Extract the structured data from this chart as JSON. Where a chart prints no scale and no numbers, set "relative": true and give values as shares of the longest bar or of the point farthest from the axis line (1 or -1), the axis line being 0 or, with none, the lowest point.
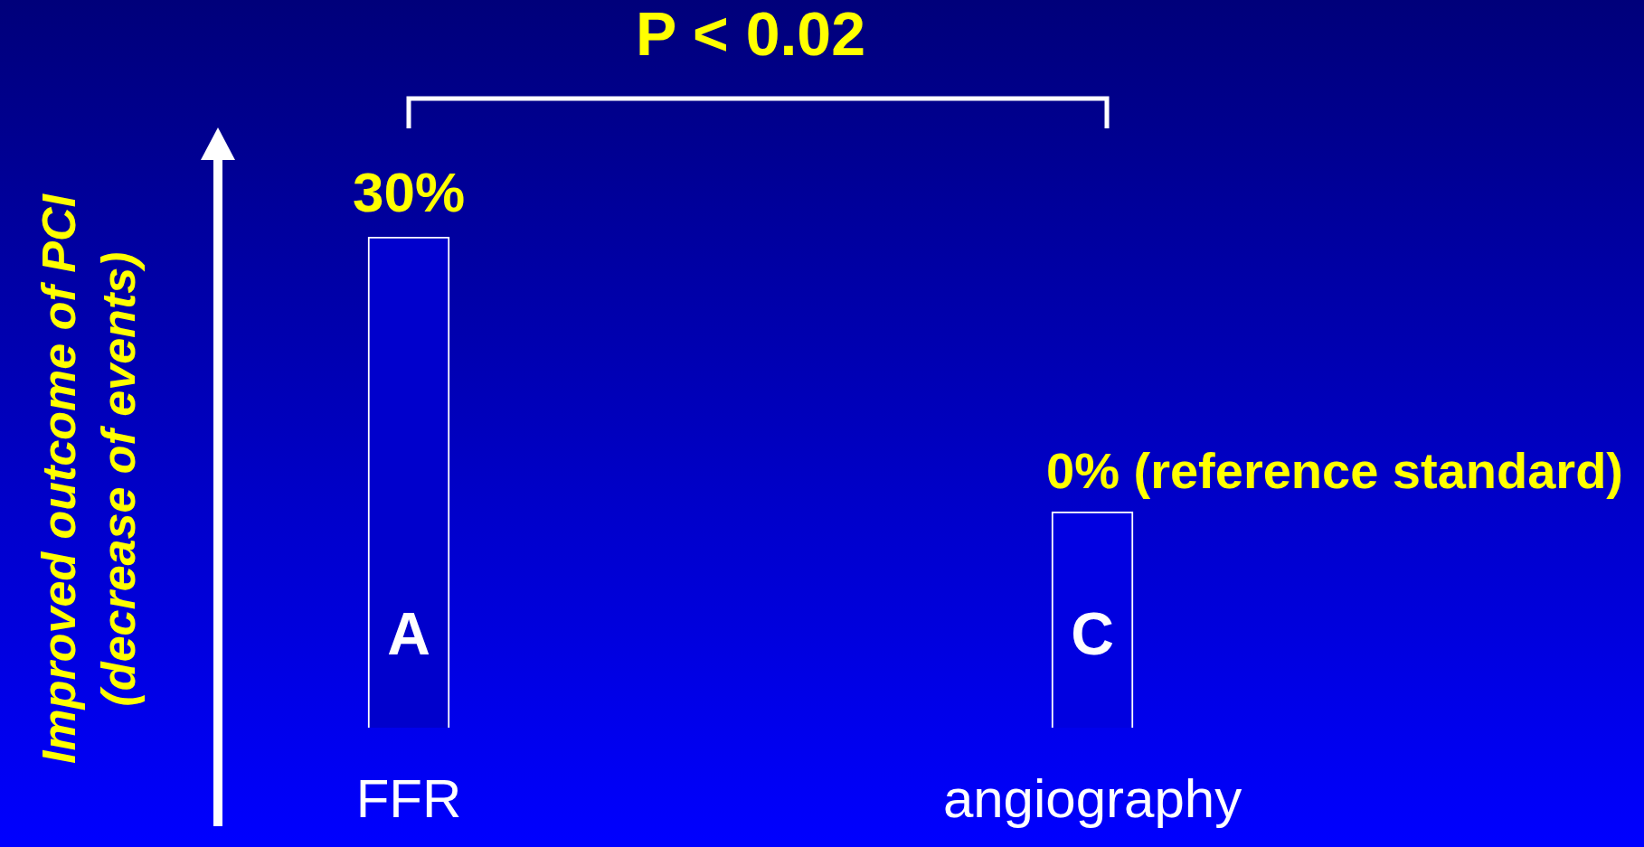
{
  "chart_data": {
    "type": "bar",
    "relative": true,
    "ylabel": "Improved outcome of PCI (decrease of events)",
    "categories": [
      "FFR",
      "angiography"
    ],
    "values": [
      1,
      0.44
    ],
    "colors": [
      "#0000cc",
      "#0000e0"
    ],
    "annotations": [
      "P < 0.02",
      "30%",
      "0% (reference standard)",
      "A",
      "C"
    ]
  }
}
